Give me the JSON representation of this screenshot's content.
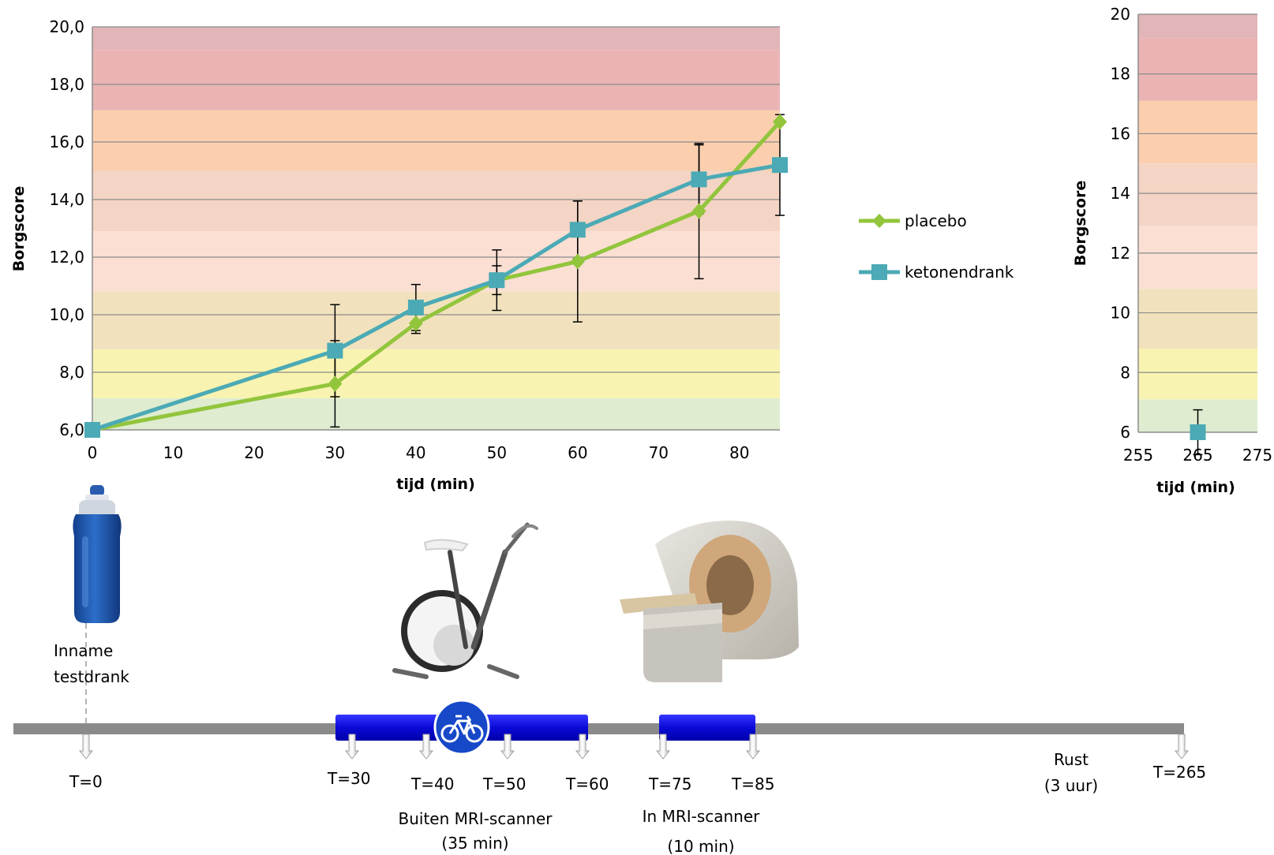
{
  "chart_data": [
    {
      "type": "line",
      "xlabel": "tijd (min)",
      "ylabel": "Borgscore",
      "xlim": [
        0,
        85
      ],
      "ylim": [
        6,
        20
      ],
      "xticks": [
        0,
        10,
        20,
        30,
        40,
        50,
        60,
        70,
        80
      ],
      "yticks": [
        "6,0",
        "8,0",
        "10,0",
        "12,0",
        "14,0",
        "16,0",
        "18,0",
        "20,0"
      ],
      "grid": true,
      "legend_position": "right",
      "background_bands": [
        {
          "from": 6,
          "to": 7.1,
          "color": "#dfecd0"
        },
        {
          "from": 7.1,
          "to": 8.8,
          "color": "#f8f3b0"
        },
        {
          "from": 8.8,
          "to": 10.8,
          "color": "#f1e2bd"
        },
        {
          "from": 10.8,
          "to": 12.9,
          "color": "#fbdfd3"
        },
        {
          "from": 12.9,
          "to": 15.0,
          "color": "#f4d4c4"
        },
        {
          "from": 15.0,
          "to": 17.1,
          "color": "#fbcfae"
        },
        {
          "from": 17.1,
          "to": 19.2,
          "color": "#ebb4b4"
        },
        {
          "from": 19.2,
          "to": 20.0,
          "color": "#e2b5b8"
        }
      ],
      "series": [
        {
          "name": "placebo",
          "color": "#92c53c",
          "marker": "diamond",
          "x": [
            0,
            30,
            40,
            50,
            60,
            75,
            85
          ],
          "y": [
            6.0,
            7.6,
            9.7,
            11.2,
            11.85,
            13.6,
            16.7
          ],
          "error": [
            0,
            1.5,
            0.35,
            1.05,
            2.1,
            2.35,
            0.0
          ]
        },
        {
          "name": "ketonendrank",
          "color": "#4baab5",
          "marker": "square",
          "x": [
            0,
            30,
            40,
            50,
            60,
            75,
            85
          ],
          "y": [
            6.0,
            8.75,
            10.25,
            11.2,
            12.95,
            14.7,
            15.2
          ],
          "error": [
            0,
            1.6,
            0.8,
            0.5,
            1.0,
            1.2,
            1.75
          ]
        }
      ]
    },
    {
      "type": "scatter",
      "xlabel": "tijd (min)",
      "ylabel": "Borgscore",
      "xlim": [
        255,
        275
      ],
      "ylim": [
        6,
        20
      ],
      "xticks": [
        255,
        265,
        275
      ],
      "yticks": [
        "6",
        "8",
        "10",
        "12",
        "14",
        "16",
        "18",
        "20"
      ],
      "grid": true,
      "series": [
        {
          "name": "ketonendrank",
          "color": "#4baab5",
          "marker": "square",
          "x": [
            265
          ],
          "y": [
            6.0
          ],
          "error": [
            0.75
          ]
        }
      ]
    }
  ],
  "legend": {
    "placebo": "placebo",
    "ketonendrank": "ketonendrank"
  },
  "timeline": {
    "intake_label_1": "Inname",
    "intake_label_2": "testdrank",
    "markers": [
      "T=0",
      "T=30",
      "T=40",
      "T=50",
      "T=60",
      "T=75",
      "T=85",
      "T=265"
    ],
    "outside_label": "Buiten MRI-scanner",
    "outside_duration": "(35 min)",
    "inside_label": "In  MRI-scanner",
    "inside_duration": "(10 min)",
    "rest_label": "Rust",
    "rest_duration": "(3 uur)",
    "bottle_icon": "water-bottle-icon",
    "bike_icon": "exercise-bike-icon",
    "cycle_sign_icon": "bicycle-sign-icon",
    "mri_icon": "mri-scanner-icon"
  }
}
